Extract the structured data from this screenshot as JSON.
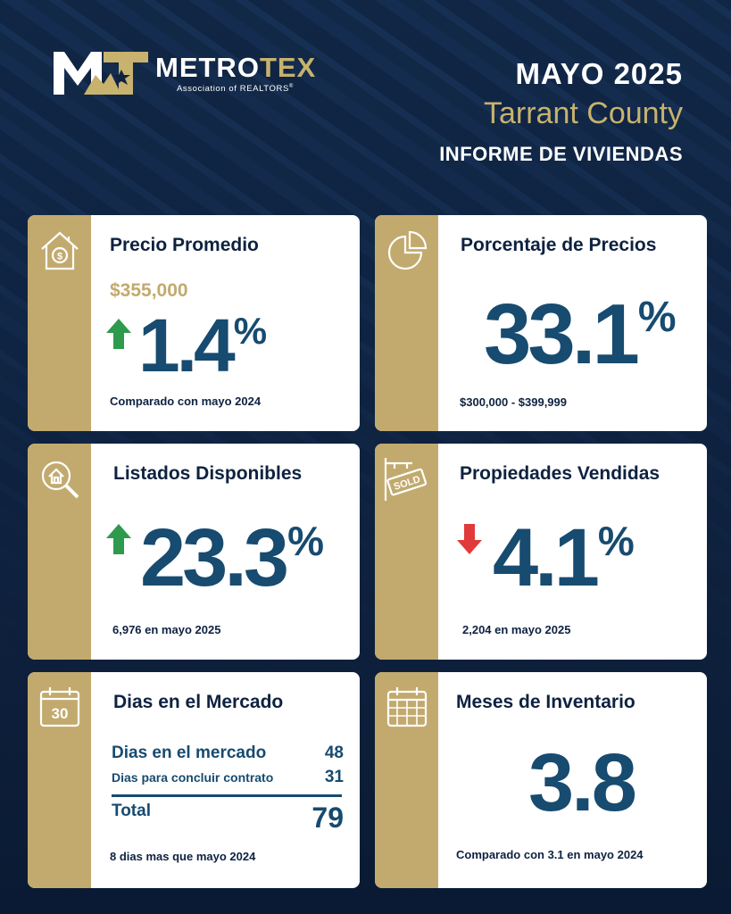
{
  "header": {
    "brand_main": "METRO",
    "brand_accent": "TEX",
    "brand_sub": "Association of REALTORS",
    "brand_reg": "®",
    "month": "MAYO 2025",
    "county": "Tarrant County",
    "report": "INFORME DE VIVIENDAS"
  },
  "colors": {
    "navy": "#174b70",
    "gold": "#c2aa6e",
    "up": "#2e9b4c",
    "down": "#e03a3a"
  },
  "cards": {
    "avg_price": {
      "icon": "house-dollar-icon",
      "title": "Precio Promedio",
      "price": "$355,000",
      "trend": "up",
      "value": "1.4",
      "unit": "%",
      "footer": "Comparado con mayo 2024"
    },
    "price_pct": {
      "icon": "pie-chart-icon",
      "title": "Porcentaje de Precios",
      "value": "33.1",
      "unit": "%",
      "footer": "$300,000 - $399,999"
    },
    "listings": {
      "icon": "house-search-icon",
      "title": "Listados Disponibles",
      "trend": "up",
      "value": "23.3",
      "unit": "%",
      "footer": "6,976 en mayo 2025"
    },
    "sold": {
      "icon": "sold-sign-icon",
      "sign_text": "SOLD",
      "title": "Propiedades Vendidas",
      "trend": "down",
      "value": "4.1",
      "unit": "%",
      "footer": "2,204 en mayo 2025"
    },
    "days": {
      "icon": "calendar-30-icon",
      "icon_text": "30",
      "title": "Dias en el Mercado",
      "row1_label": "Dias en el mercado",
      "row1_value": "48",
      "row2_label": "Dias para concluir contrato",
      "row2_value": "31",
      "total_label": "Total",
      "total_value": "79",
      "footer": "8 dias mas que mayo 2024"
    },
    "inventory": {
      "icon": "calendar-grid-icon",
      "title": "Meses de Inventario",
      "value": "3.8",
      "footer": "Comparado con 3.1 en mayo 2024"
    }
  }
}
